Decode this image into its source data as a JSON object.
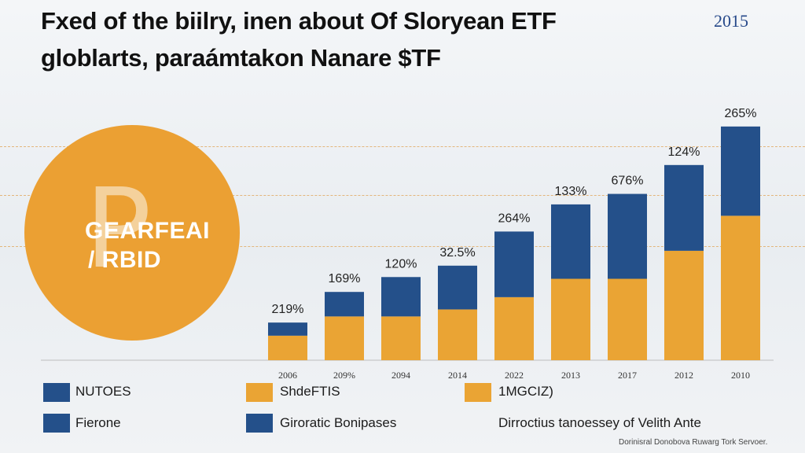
{
  "header": {
    "title_line1": "Fxed of the biilry, inen about Of Sloryean ETF",
    "title_line2": "globlarts, paraámtakon Nanare $TF",
    "year_tag": "2015"
  },
  "emblem": {
    "glyph": "P",
    "line1": "GEARFEAI",
    "line2": "/ RBID"
  },
  "chart_data": {
    "type": "bar",
    "stacked": true,
    "categories": [
      "2006",
      "209%",
      "2094",
      "2014",
      "2022",
      "2013",
      "2017",
      "2012",
      "2010"
    ],
    "data_labels": [
      "219%",
      "169%",
      "120%",
      "32.5%",
      "264%",
      "133%",
      "676%",
      "124%",
      "265%"
    ],
    "series": [
      {
        "name": "ShdeFTIS",
        "color": "#eaa434",
        "values": [
          28,
          50,
          50,
          58,
          72,
          93,
          93,
          125,
          165
        ]
      },
      {
        "name": "NUTOES",
        "color": "#24508a",
        "values": [
          15,
          28,
          45,
          50,
          75,
          85,
          97,
          98,
          102
        ]
      }
    ],
    "ylim": [
      0,
      310
    ],
    "grid": false,
    "title": "",
    "xlabel": "",
    "ylabel": ""
  },
  "legend": [
    {
      "label": "NUTOES",
      "color": "#24508a"
    },
    {
      "label": "ShdeFTIS",
      "color": "#eaa434"
    },
    {
      "label": "1MGCIZ)",
      "color": "#eaa434"
    },
    {
      "label": "Fierone",
      "color": "#24508a"
    },
    {
      "label": "Giroratic Bonipases",
      "color": "#24508a"
    },
    {
      "label": "Dirroctius tanoessey of Velith Ante",
      "color": null
    }
  ],
  "footer": {
    "note": "Dorinisral Donobova Ruwarg Tork Servoer."
  }
}
